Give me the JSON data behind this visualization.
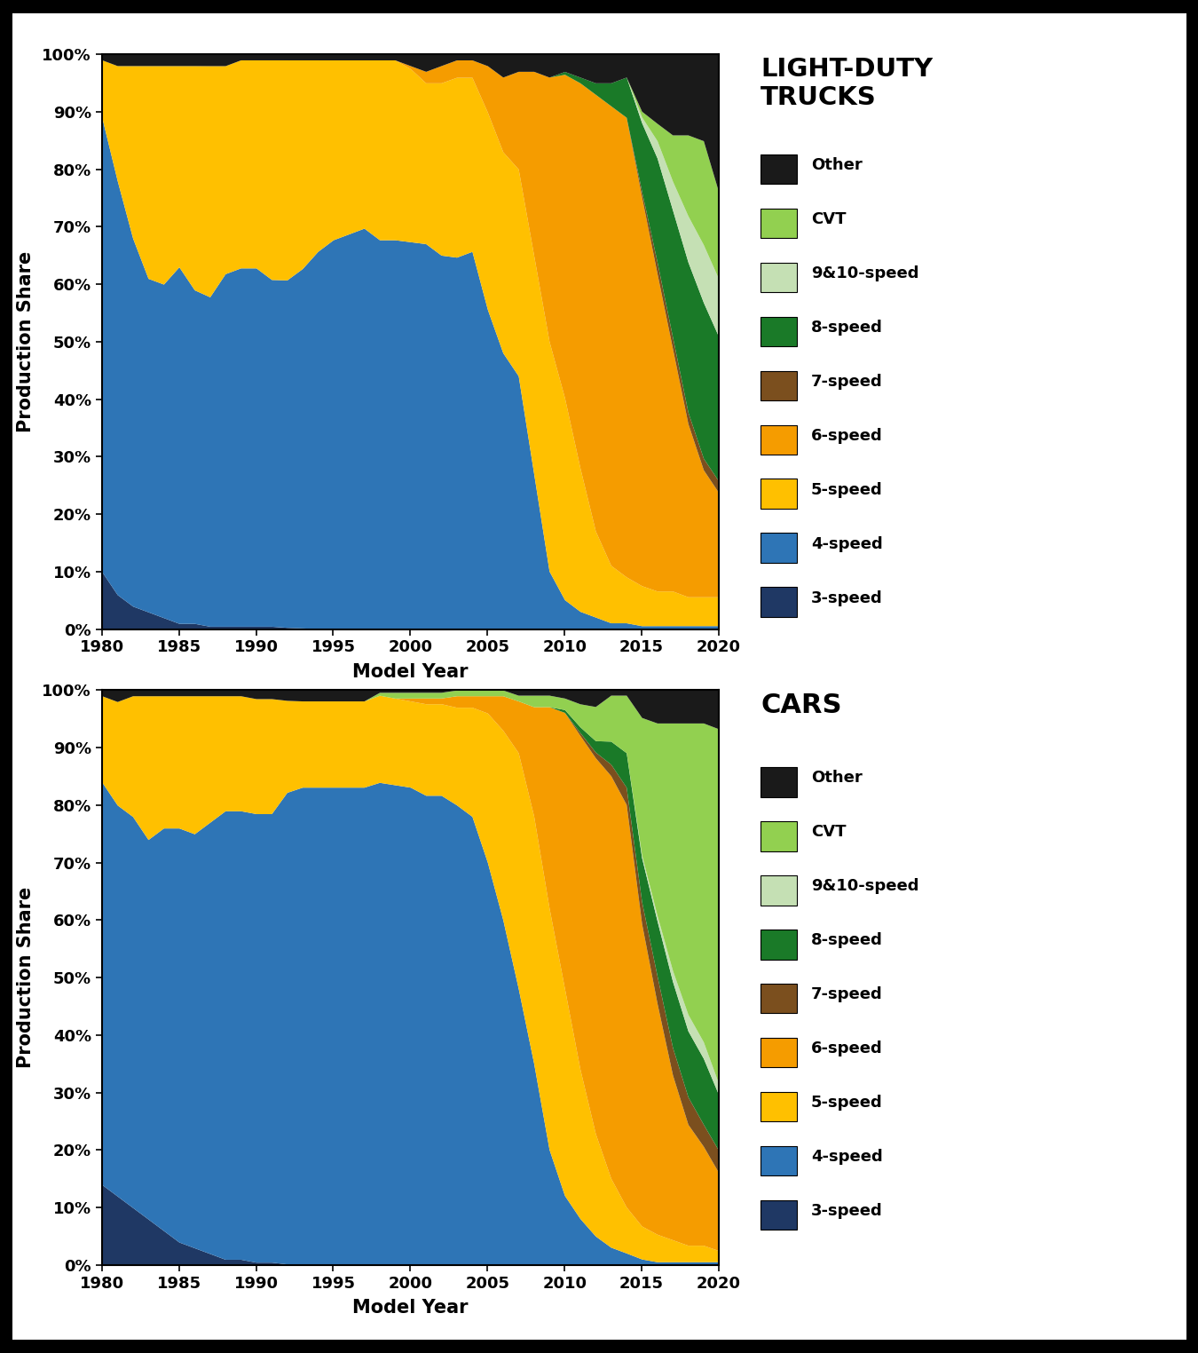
{
  "years": [
    1980,
    1981,
    1982,
    1983,
    1984,
    1985,
    1986,
    1987,
    1988,
    1989,
    1990,
    1991,
    1992,
    1993,
    1994,
    1995,
    1996,
    1997,
    1998,
    1999,
    2000,
    2001,
    2002,
    2003,
    2004,
    2005,
    2006,
    2007,
    2008,
    2009,
    2010,
    2011,
    2012,
    2013,
    2014,
    2015,
    2016,
    2017,
    2018,
    2019,
    2020
  ],
  "trucks": {
    "3speed": [
      10,
      6,
      4,
      3,
      2,
      1,
      1,
      0.5,
      0.5,
      0.5,
      0.5,
      0.5,
      0.3,
      0.2,
      0.1,
      0.1,
      0.1,
      0.1,
      0.1,
      0.1,
      0.1,
      0.1,
      0.1,
      0.1,
      0.1,
      0.1,
      0.1,
      0.1,
      0.1,
      0.1,
      0.1,
      0.1,
      0.1,
      0.1,
      0.1,
      0.1,
      0.1,
      0.1,
      0.1,
      0.1,
      0.1
    ],
    "4speed": [
      79,
      72,
      64,
      58,
      58,
      62,
      58,
      57,
      61,
      62,
      62,
      60,
      60,
      62,
      65,
      67,
      68,
      69,
      67,
      67,
      67,
      67,
      65,
      64,
      65,
      55,
      48,
      44,
      27,
      10,
      5,
      3,
      2,
      1,
      1,
      0.5,
      0.5,
      0.5,
      0.5,
      0.5,
      0.5
    ],
    "5speed": [
      10,
      20,
      30,
      37,
      38,
      35,
      39,
      40,
      36,
      36,
      36,
      38,
      38,
      36,
      33,
      31,
      30,
      29,
      31,
      31,
      30,
      28,
      30,
      31,
      30,
      34,
      35,
      36,
      38,
      40,
      35,
      25,
      15,
      10,
      8,
      7,
      6,
      6,
      5,
      5,
      5
    ],
    "6speed": [
      0,
      0,
      0,
      0,
      0,
      0,
      0,
      0,
      0,
      0,
      0,
      0,
      0,
      0,
      0,
      0,
      0,
      0,
      0,
      0,
      0.5,
      2,
      3,
      3,
      3,
      8,
      13,
      17,
      32,
      46,
      56,
      67,
      76,
      80,
      80,
      68,
      55,
      42,
      30,
      22,
      18
    ],
    "7speed": [
      0,
      0,
      0,
      0,
      0,
      0,
      0,
      0,
      0,
      0,
      0,
      0,
      0,
      0,
      0,
      0,
      0,
      0,
      0,
      0,
      0,
      0,
      0,
      0,
      0,
      0,
      0,
      0,
      0,
      0,
      0,
      0,
      0,
      0,
      0,
      1,
      2,
      2,
      2,
      2,
      2
    ],
    "8speed": [
      0,
      0,
      0,
      0,
      0,
      0,
      0,
      0,
      0,
      0,
      0,
      0,
      0,
      0,
      0,
      0,
      0,
      0,
      0,
      0,
      0,
      0,
      0,
      0,
      0,
      0,
      0,
      0,
      0,
      0,
      0.5,
      1,
      2,
      4,
      7,
      12,
      18,
      22,
      26,
      27,
      25
    ],
    "910speed": [
      0,
      0,
      0,
      0,
      0,
      0,
      0,
      0,
      0,
      0,
      0,
      0,
      0,
      0,
      0,
      0,
      0,
      0,
      0,
      0,
      0,
      0,
      0,
      0,
      0,
      0,
      0,
      0,
      0,
      0,
      0,
      0,
      0,
      0,
      0,
      1,
      3,
      5,
      8,
      10,
      10
    ],
    "cvt": [
      0,
      0,
      0,
      0,
      0,
      0,
      0,
      0,
      0,
      0,
      0,
      0,
      0,
      0,
      0,
      0,
      0,
      0,
      0,
      0,
      0,
      0,
      0,
      0,
      0,
      0,
      0,
      0,
      0,
      0,
      0,
      0,
      0,
      0,
      0,
      1,
      3,
      8,
      14,
      18,
      15
    ],
    "other": [
      1,
      2,
      2,
      2,
      2,
      2,
      2,
      2,
      2,
      1,
      1,
      1,
      1,
      1,
      1,
      1,
      1,
      1,
      1,
      1,
      2,
      3,
      2,
      1,
      1,
      2,
      4,
      3,
      3,
      4,
      3,
      4,
      5,
      5,
      4,
      10,
      12,
      14,
      14,
      15,
      24
    ]
  },
  "cars": {
    "3speed": [
      14,
      12,
      10,
      8,
      6,
      4,
      3,
      2,
      1,
      1,
      0.5,
      0.5,
      0.2,
      0.1,
      0.1,
      0.1,
      0.1,
      0.1,
      0.1,
      0.1,
      0.1,
      0.1,
      0.1,
      0.1,
      0.1,
      0.1,
      0.1,
      0.1,
      0.1,
      0.1,
      0.1,
      0.1,
      0.1,
      0.1,
      0.1,
      0.1,
      0.1,
      0.1,
      0.1,
      0.1,
      0.1
    ],
    "4speed": [
      70,
      68,
      68,
      66,
      70,
      72,
      72,
      75,
      78,
      78,
      78,
      78,
      82,
      83,
      83,
      83,
      83,
      83,
      83,
      83,
      83,
      82,
      82,
      80,
      78,
      70,
      60,
      48,
      35,
      20,
      12,
      8,
      5,
      3,
      2,
      1,
      0.5,
      0.5,
      0.5,
      0.5,
      0.5
    ],
    "5speed": [
      15,
      18,
      21,
      25,
      23,
      23,
      24,
      22,
      20,
      20,
      20,
      20,
      16,
      15,
      15,
      15,
      15,
      15,
      15,
      15,
      15,
      16,
      16,
      17,
      19,
      26,
      33,
      41,
      43,
      42,
      36,
      26,
      18,
      12,
      8,
      6,
      5,
      4,
      3,
      3,
      2
    ],
    "6speed": [
      0,
      0,
      0,
      0,
      0,
      0,
      0,
      0,
      0,
      0,
      0,
      0,
      0,
      0,
      0,
      0,
      0,
      0,
      0,
      0,
      0.5,
      1,
      1,
      2,
      2,
      3,
      6,
      9,
      19,
      35,
      48,
      58,
      66,
      70,
      70,
      55,
      42,
      30,
      22,
      18,
      14
    ],
    "7speed": [
      0,
      0,
      0,
      0,
      0,
      0,
      0,
      0,
      0,
      0,
      0,
      0,
      0,
      0,
      0,
      0,
      0,
      0,
      0,
      0,
      0,
      0,
      0,
      0,
      0,
      0,
      0,
      0,
      0,
      0,
      0,
      0.5,
      1,
      2,
      3,
      4,
      5,
      5,
      5,
      4,
      4
    ],
    "8speed": [
      0,
      0,
      0,
      0,
      0,
      0,
      0,
      0,
      0,
      0,
      0,
      0,
      0,
      0,
      0,
      0,
      0,
      0,
      0,
      0,
      0,
      0,
      0,
      0,
      0,
      0,
      0,
      0,
      0,
      0,
      0.5,
      1,
      2,
      4,
      6,
      8,
      10,
      12,
      12,
      12,
      10
    ],
    "910speed": [
      0,
      0,
      0,
      0,
      0,
      0,
      0,
      0,
      0,
      0,
      0,
      0,
      0,
      0,
      0,
      0,
      0,
      0,
      0,
      0,
      0,
      0,
      0,
      0,
      0,
      0,
      0,
      0,
      0,
      0,
      0,
      0,
      0,
      0,
      0,
      0.5,
      1,
      2,
      3,
      3,
      2
    ],
    "cvt": [
      0,
      0,
      0,
      0,
      0,
      0,
      0,
      0,
      0,
      0,
      0,
      0,
      0,
      0,
      0,
      0,
      0,
      0,
      0.5,
      1,
      1,
      1,
      1,
      1,
      1,
      1,
      1,
      1,
      2,
      2,
      2,
      4,
      6,
      8,
      10,
      25,
      35,
      45,
      53,
      58,
      64
    ],
    "other": [
      1,
      2,
      1,
      1,
      1,
      1,
      1,
      1,
      1,
      1,
      1.5,
      1.5,
      1.8,
      1.9,
      1.9,
      1.9,
      1.9,
      1.9,
      0.4,
      0.4,
      0.4,
      0.4,
      0.4,
      0,
      0,
      0,
      0,
      0.9,
      0.9,
      0.9,
      1.4,
      2.4,
      2.9,
      0.9,
      0.9,
      5,
      6,
      6,
      6,
      6,
      7
    ]
  },
  "colors": {
    "3speed": "#1f3864",
    "4speed": "#2e75b6",
    "5speed": "#ffc000",
    "6speed": "#f59c00",
    "7speed": "#7b4f1e",
    "8speed": "#1a7a28",
    "910speed": "#c5e0b4",
    "cvt": "#92d050",
    "other": "#1a1a1a"
  },
  "legend_labels": {
    "3speed": "3-speed",
    "4speed": "4-speed",
    "5speed": "5-speed",
    "6speed": "6-speed",
    "7speed": "7-speed",
    "8speed": "8-speed",
    "910speed": "9&10-speed",
    "cvt": "CVT",
    "other": "Other"
  },
  "trucks_title": "LIGHT-DUTY\nTRUCKS",
  "cars_title": "CARS",
  "ylabel": "Production Share",
  "xlabel": "Model Year",
  "background_color": "#ffffff",
  "outer_background": "#000000",
  "plot_bg": "#ffffff"
}
